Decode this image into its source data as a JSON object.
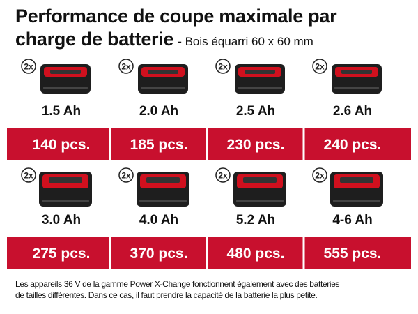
{
  "header": {
    "title_line1": "Performance de coupe maximale par",
    "title_line2": "charge de batterie",
    "subtitle": "- Bois équarri 60 x 60 mm"
  },
  "rows": [
    [
      {
        "badge": "2x",
        "capacity": "1.5 Ah",
        "count": "140 pcs."
      },
      {
        "badge": "2x",
        "capacity": "2.0 Ah",
        "count": "185 pcs."
      },
      {
        "badge": "2x",
        "capacity": "2.5 Ah",
        "count": "230 pcs."
      },
      {
        "badge": "2x",
        "capacity": "2.6 Ah",
        "count": "240 pcs."
      }
    ],
    [
      {
        "badge": "2x",
        "capacity": "3.0 Ah",
        "count": "275 pcs."
      },
      {
        "badge": "2x",
        "capacity": "4.0 Ah",
        "count": "370 pcs."
      },
      {
        "badge": "2x",
        "capacity": "5.2 Ah",
        "count": "480 pcs."
      },
      {
        "badge": "2x",
        "capacity": "4-6 Ah",
        "count": "555 pcs."
      }
    ]
  ],
  "footer": {
    "line1": "Les appareils 36 V de la gamme Power X-Change fonctionnent également avec des batteries",
    "line2": "de tailles différentes. Dans ce cas, il faut prendre la capacité de la batterie la plus petite."
  }
}
